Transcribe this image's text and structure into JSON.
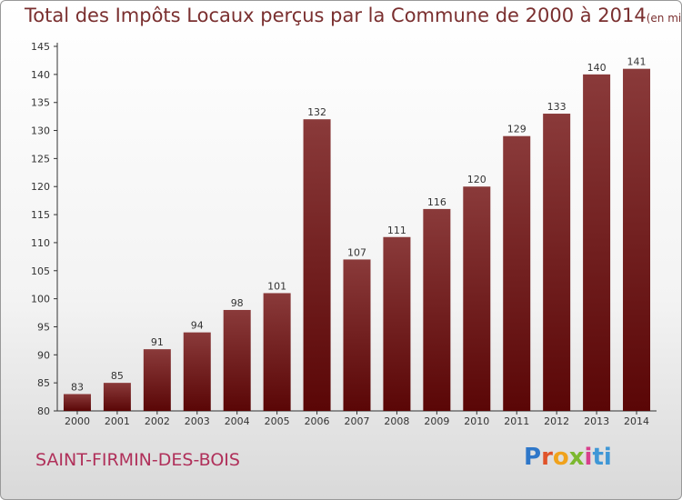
{
  "title": "Total des Impôts Locaux perçus par la Commune de 2000 à 2014",
  "subtitle": "(en milliers d'€)",
  "commune": "SAINT-FIRMIN-DES-BOIS",
  "logo": {
    "letters": [
      "P",
      "r",
      "o",
      "x",
      "i",
      "ti"
    ]
  },
  "colors": {
    "bar_top": "#8a3a3a",
    "bar_bottom": "#5a0606",
    "title": "#7a2f2f",
    "commune": "#b0305a"
  },
  "chart_data": {
    "type": "bar",
    "categories": [
      "2000",
      "2001",
      "2002",
      "2003",
      "2004",
      "2005",
      "2006",
      "2007",
      "2008",
      "2009",
      "2010",
      "2011",
      "2012",
      "2013",
      "2014"
    ],
    "values": [
      83,
      85,
      91,
      94,
      98,
      101,
      132,
      107,
      111,
      116,
      120,
      129,
      133,
      140,
      141
    ],
    "ylim": [
      80,
      145
    ],
    "yticks": [
      80,
      85,
      90,
      95,
      100,
      105,
      110,
      115,
      120,
      125,
      130,
      135,
      140,
      145
    ],
    "grid": false,
    "xlabel": "",
    "ylabel": ""
  }
}
